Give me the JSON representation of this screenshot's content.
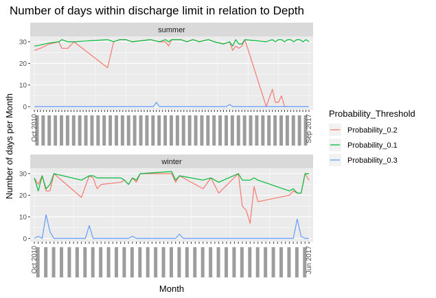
{
  "chart_data": {
    "type": "line",
    "title": "Number of days within discharge limit in relation to Depth",
    "xlabel": "Month",
    "ylabel": "Number of days per Month",
    "legend": {
      "title": "Probability_Threshold",
      "placement": "right",
      "entries": [
        "Probability_0.2",
        "Probability_0.1",
        "Probability_0.3"
      ]
    },
    "colors": {
      "Probability_0.2": "#F8766D",
      "Probability_0.1": "#00BA38",
      "Probability_0.3": "#619CFF",
      "panel_bg": "#EBEBEB",
      "strip_bg": "#D9D9D9",
      "grid": "#FFFFFF"
    },
    "ylim": [
      -1.5,
      32.5
    ],
    "yticks": [
      0,
      10,
      20,
      30
    ],
    "grid": true,
    "panels": [
      {
        "strip": "summer",
        "n_months": 84,
        "first_tick_label": "Oct 2010",
        "last_tick_label": "Sep 2017",
        "series": [
          {
            "name": "Probability_0.2",
            "points": [
              [
                1,
                26
              ],
              [
                3,
                27
              ],
              [
                6,
                29
              ],
              [
                9,
                30
              ],
              [
                10,
                27
              ],
              [
                12,
                27
              ],
              [
                14,
                30
              ],
              [
                25,
                18
              ],
              [
                27,
                30
              ],
              [
                29,
                31
              ],
              [
                31,
                31
              ],
              [
                33,
                30
              ],
              [
                39,
                31
              ],
              [
                42,
                30
              ],
              [
                44,
                30
              ],
              [
                45,
                28
              ],
              [
                46,
                31
              ],
              [
                49,
                31
              ],
              [
                51,
                30
              ],
              [
                53,
                31
              ],
              [
                55,
                30
              ],
              [
                58,
                31
              ],
              [
                60,
                30
              ],
              [
                63,
                29
              ],
              [
                65,
                30
              ],
              [
                66,
                26
              ],
              [
                67,
                28
              ],
              [
                68,
                27
              ],
              [
                69,
                28
              ],
              [
                70,
                31
              ],
              [
                77,
                0
              ],
              [
                79,
                8
              ],
              [
                80,
                2
              ],
              [
                81,
                2
              ],
              [
                82,
                5
              ],
              [
                83,
                0
              ],
              [
                84,
                0
              ]
            ]
          },
          {
            "name": "Probability_0.1",
            "points": [
              [
                1,
                28
              ],
              [
                3,
                28.5
              ],
              [
                6,
                29.5
              ],
              [
                9,
                30
              ],
              [
                10,
                31
              ],
              [
                12,
                30
              ],
              [
                14,
                30
              ],
              [
                25,
                31
              ],
              [
                27,
                30
              ],
              [
                29,
                31
              ],
              [
                31,
                31
              ],
              [
                33,
                30
              ],
              [
                39,
                31
              ],
              [
                42,
                30
              ],
              [
                44,
                31
              ],
              [
                45,
                30
              ],
              [
                46,
                31
              ],
              [
                49,
                31
              ],
              [
                51,
                30
              ],
              [
                53,
                31
              ],
              [
                55,
                30
              ],
              [
                58,
                31
              ],
              [
                60,
                30
              ],
              [
                63,
                29
              ],
              [
                65,
                30
              ],
              [
                66,
                28
              ],
              [
                67,
                31
              ],
              [
                68,
                29
              ],
              [
                69,
                29
              ],
              [
                70,
                31
              ],
              [
                77,
                30
              ],
              [
                79,
                31
              ],
              [
                80,
                30
              ],
              [
                81,
                31
              ],
              [
                82,
                31
              ],
              [
                83,
                30
              ],
              [
                84,
                31
              ],
              [
                85,
                31
              ],
              [
                86,
                30
              ],
              [
                87,
                31
              ],
              [
                88,
                31
              ],
              [
                89,
                30
              ],
              [
                90,
                31
              ],
              [
                91,
                30
              ]
            ]
          },
          {
            "name": "Probability_0.3",
            "points": [
              [
                1,
                0
              ],
              [
                40,
                0
              ],
              [
                41,
                2
              ],
              [
                42,
                0
              ],
              [
                64,
                0
              ],
              [
                65,
                1
              ],
              [
                66,
                0
              ],
              [
                91,
                0
              ]
            ]
          }
        ]
      },
      {
        "strip": "winter",
        "n_months": 84,
        "first_tick_label": "Oct 2010",
        "last_tick_label": "Jun 2017",
        "series": [
          {
            "name": "Probability_0.2",
            "points": [
              [
                1,
                28
              ],
              [
                2,
                25
              ],
              [
                3,
                29
              ],
              [
                4,
                22
              ],
              [
                5,
                22
              ],
              [
                6,
                30
              ],
              [
                13,
                19
              ],
              [
                15,
                29
              ],
              [
                16,
                28
              ],
              [
                17,
                23
              ],
              [
                18,
                25
              ],
              [
                23,
                26
              ],
              [
                24,
                27
              ],
              [
                25,
                25
              ],
              [
                26,
                28
              ],
              [
                27,
                26
              ],
              [
                28,
                30
              ],
              [
                36,
                30
              ],
              [
                37,
                26
              ],
              [
                38,
                29
              ],
              [
                44,
                23
              ],
              [
                46,
                28
              ],
              [
                48,
                21
              ],
              [
                53,
                30
              ],
              [
                54,
                15
              ],
              [
                55,
                13
              ],
              [
                56,
                7
              ],
              [
                57,
                24
              ],
              [
                58,
                17
              ],
              [
                66,
                20
              ],
              [
                67,
                22
              ],
              [
                68,
                21
              ],
              [
                69,
                21
              ],
              [
                70,
                30
              ],
              [
                71,
                27
              ]
            ]
          },
          {
            "name": "Probability_0.1",
            "points": [
              [
                1,
                28
              ],
              [
                2,
                22
              ],
              [
                3,
                29
              ],
              [
                4,
                23
              ],
              [
                5,
                25
              ],
              [
                6,
                30
              ],
              [
                13,
                27
              ],
              [
                15,
                29
              ],
              [
                16,
                29
              ],
              [
                17,
                28
              ],
              [
                18,
                28
              ],
              [
                23,
                28
              ],
              [
                24,
                27
              ],
              [
                25,
                25
              ],
              [
                26,
                28
              ],
              [
                27,
                27
              ],
              [
                28,
                30
              ],
              [
                36,
                31
              ],
              [
                37,
                27
              ],
              [
                38,
                29
              ],
              [
                44,
                27
              ],
              [
                46,
                28
              ],
              [
                48,
                26
              ],
              [
                53,
                30
              ],
              [
                54,
                27
              ],
              [
                55,
                27
              ],
              [
                56,
                27
              ],
              [
                57,
                28
              ],
              [
                58,
                27
              ],
              [
                66,
                22
              ],
              [
                67,
                23
              ],
              [
                68,
                21
              ],
              [
                69,
                21
              ],
              [
                70,
                30
              ],
              [
                71,
                30
              ]
            ]
          },
          {
            "name": "Probability_0.3",
            "points": [
              [
                1,
                0
              ],
              [
                2,
                1
              ],
              [
                3,
                0
              ],
              [
                4,
                11
              ],
              [
                5,
                3
              ],
              [
                6,
                0
              ],
              [
                14,
                0
              ],
              [
                15,
                6
              ],
              [
                16,
                0
              ],
              [
                25,
                0
              ],
              [
                26,
                1
              ],
              [
                27,
                0
              ],
              [
                37,
                0
              ],
              [
                38,
                2
              ],
              [
                39,
                0
              ],
              [
                67,
                0
              ],
              [
                68,
                9
              ],
              [
                69,
                1
              ],
              [
                70,
                0
              ],
              [
                71,
                0
              ]
            ]
          }
        ]
      }
    ]
  }
}
